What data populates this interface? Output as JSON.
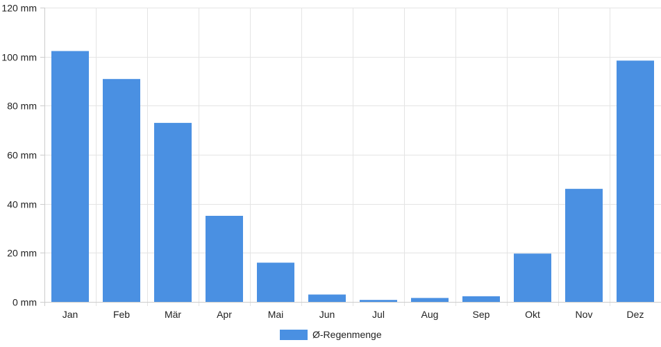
{
  "chart_data": {
    "type": "bar",
    "categories": [
      "Jan",
      "Feb",
      "Mär",
      "Apr",
      "Mai",
      "Jun",
      "Jul",
      "Aug",
      "Sep",
      "Okt",
      "Nov",
      "Dez"
    ],
    "series": [
      {
        "name": "Ø-Regenmenge",
        "values": [
          102.3,
          90.9,
          73.0,
          35.1,
          16.0,
          3.0,
          0.8,
          1.6,
          2.3,
          19.7,
          46.1,
          98.4
        ],
        "color": "#4a90e2"
      }
    ],
    "y_ticks": [
      "0 mm",
      "20 mm",
      "40 mm",
      "60 mm",
      "80 mm",
      "100 mm",
      "120 mm"
    ],
    "ylim": [
      0,
      120
    ],
    "y_tick_step": 20,
    "grid": true,
    "legend_position": "bottom-center"
  }
}
